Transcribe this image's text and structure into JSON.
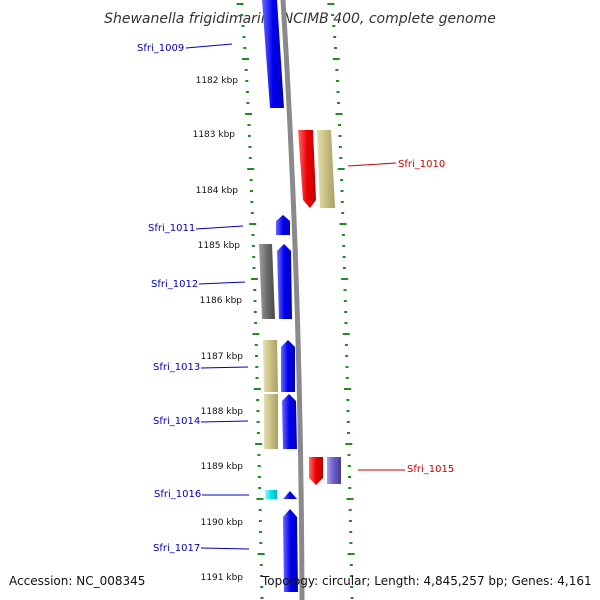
{
  "title": "Shewanella frigidimarina NCIMB 400, complete genome",
  "accession_text": "Accession: NC_008345",
  "topology_text": "Topology: circular; Length: 4,845,257 bp; Genes: 4,161",
  "scale_labels": [
    "1182 kbp",
    "1183 kbp",
    "1184 kbp",
    "1185 kbp",
    "1186 kbp",
    "1187 kbp",
    "1188 kbp",
    "1189 kbp",
    "1190 kbp",
    "1191 kbp"
  ],
  "gene_labels": [
    {
      "name": "Sfri_1009",
      "strand": "left",
      "color": "#0000bb"
    },
    {
      "name": "Sfri_1010",
      "strand": "right",
      "color": "#cc0000"
    },
    {
      "name": "Sfri_1011",
      "strand": "left",
      "color": "#0000bb"
    },
    {
      "name": "Sfri_1012",
      "strand": "left",
      "color": "#0000bb"
    },
    {
      "name": "Sfri_1013",
      "strand": "left",
      "color": "#0000bb"
    },
    {
      "name": "Sfri_1014",
      "strand": "left",
      "color": "#0000bb"
    },
    {
      "name": "Sfri_1015",
      "strand": "right",
      "color": "#cc0000"
    },
    {
      "name": "Sfri_1016",
      "strand": "left",
      "color": "#0000bb"
    },
    {
      "name": "Sfri_1017",
      "strand": "left",
      "color": "#0000bb"
    }
  ],
  "colors": {
    "forward_gene": "#0000ee",
    "reverse_gene": "#ee0000",
    "khaki_gene": "#c8bf84",
    "gray_gene": "#6c6c6c",
    "cyan_gene": "#00e5ee",
    "purple_gene": "#6a5acd",
    "tick_green": "#228b22",
    "backbone": "#8a8a8a"
  }
}
